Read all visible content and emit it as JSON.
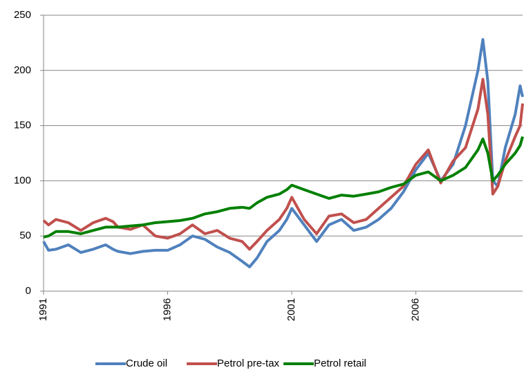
{
  "chart_data": {
    "type": "line",
    "x": [
      1991.0,
      1991.2,
      1991.5,
      1992.0,
      1992.5,
      1993.0,
      1993.5,
      1993.8,
      1994.0,
      1994.5,
      1995.0,
      1995.5,
      1996.0,
      1996.5,
      1997.0,
      1997.5,
      1998.0,
      1998.5,
      1999.0,
      1999.3,
      1999.6,
      2000.0,
      2000.5,
      2000.8,
      2001.0,
      2001.5,
      2002.0,
      2002.5,
      2003.0,
      2003.5,
      2004.0,
      2004.5,
      2005.0,
      2005.5,
      2006.0,
      2006.5,
      2007.0,
      2007.5,
      2008.0,
      2008.5,
      2008.7,
      2008.9,
      2009.1,
      2009.3,
      2009.6,
      2010.0,
      2010.2,
      2010.3
    ],
    "series": [
      {
        "name": "Crude oil",
        "color": "#4f81bd",
        "values": [
          45,
          37,
          38,
          42,
          35,
          38,
          42,
          38,
          36,
          34,
          36,
          37,
          37,
          42,
          50,
          47,
          40,
          35,
          27,
          22,
          30,
          45,
          55,
          65,
          75,
          60,
          45,
          60,
          65,
          55,
          58,
          65,
          75,
          90,
          110,
          125,
          100,
          115,
          150,
          200,
          228,
          190,
          100,
          95,
          130,
          160,
          186,
          176
        ]
      },
      {
        "name": "Petrol pre-tax",
        "color": "#c0504d",
        "values": [
          64,
          60,
          65,
          62,
          55,
          62,
          66,
          63,
          58,
          56,
          60,
          50,
          48,
          52,
          60,
          52,
          55,
          48,
          45,
          38,
          45,
          55,
          65,
          75,
          85,
          65,
          52,
          68,
          70,
          62,
          65,
          75,
          85,
          95,
          115,
          128,
          98,
          118,
          130,
          165,
          192,
          160,
          88,
          95,
          118,
          140,
          150,
          170
        ]
      },
      {
        "name": "Petrol retail",
        "color": "#008000",
        "values": [
          49,
          50,
          54,
          54,
          52,
          55,
          58,
          58,
          58,
          59,
          60,
          62,
          63,
          64,
          66,
          70,
          72,
          75,
          76,
          75,
          80,
          85,
          88,
          92,
          96,
          92,
          88,
          84,
          87,
          86,
          88,
          90,
          94,
          97,
          105,
          108,
          100,
          105,
          112,
          128,
          138,
          125,
          100,
          105,
          115,
          125,
          132,
          140
        ]
      }
    ],
    "xlim": [
      1991,
      2010.3
    ],
    "xticks": [
      1991,
      1996,
      2001,
      2006
    ],
    "ylim": [
      0,
      250
    ],
    "yticks": [
      0,
      50,
      100,
      150,
      200,
      250
    ],
    "grid": true,
    "legend": "bottom"
  }
}
